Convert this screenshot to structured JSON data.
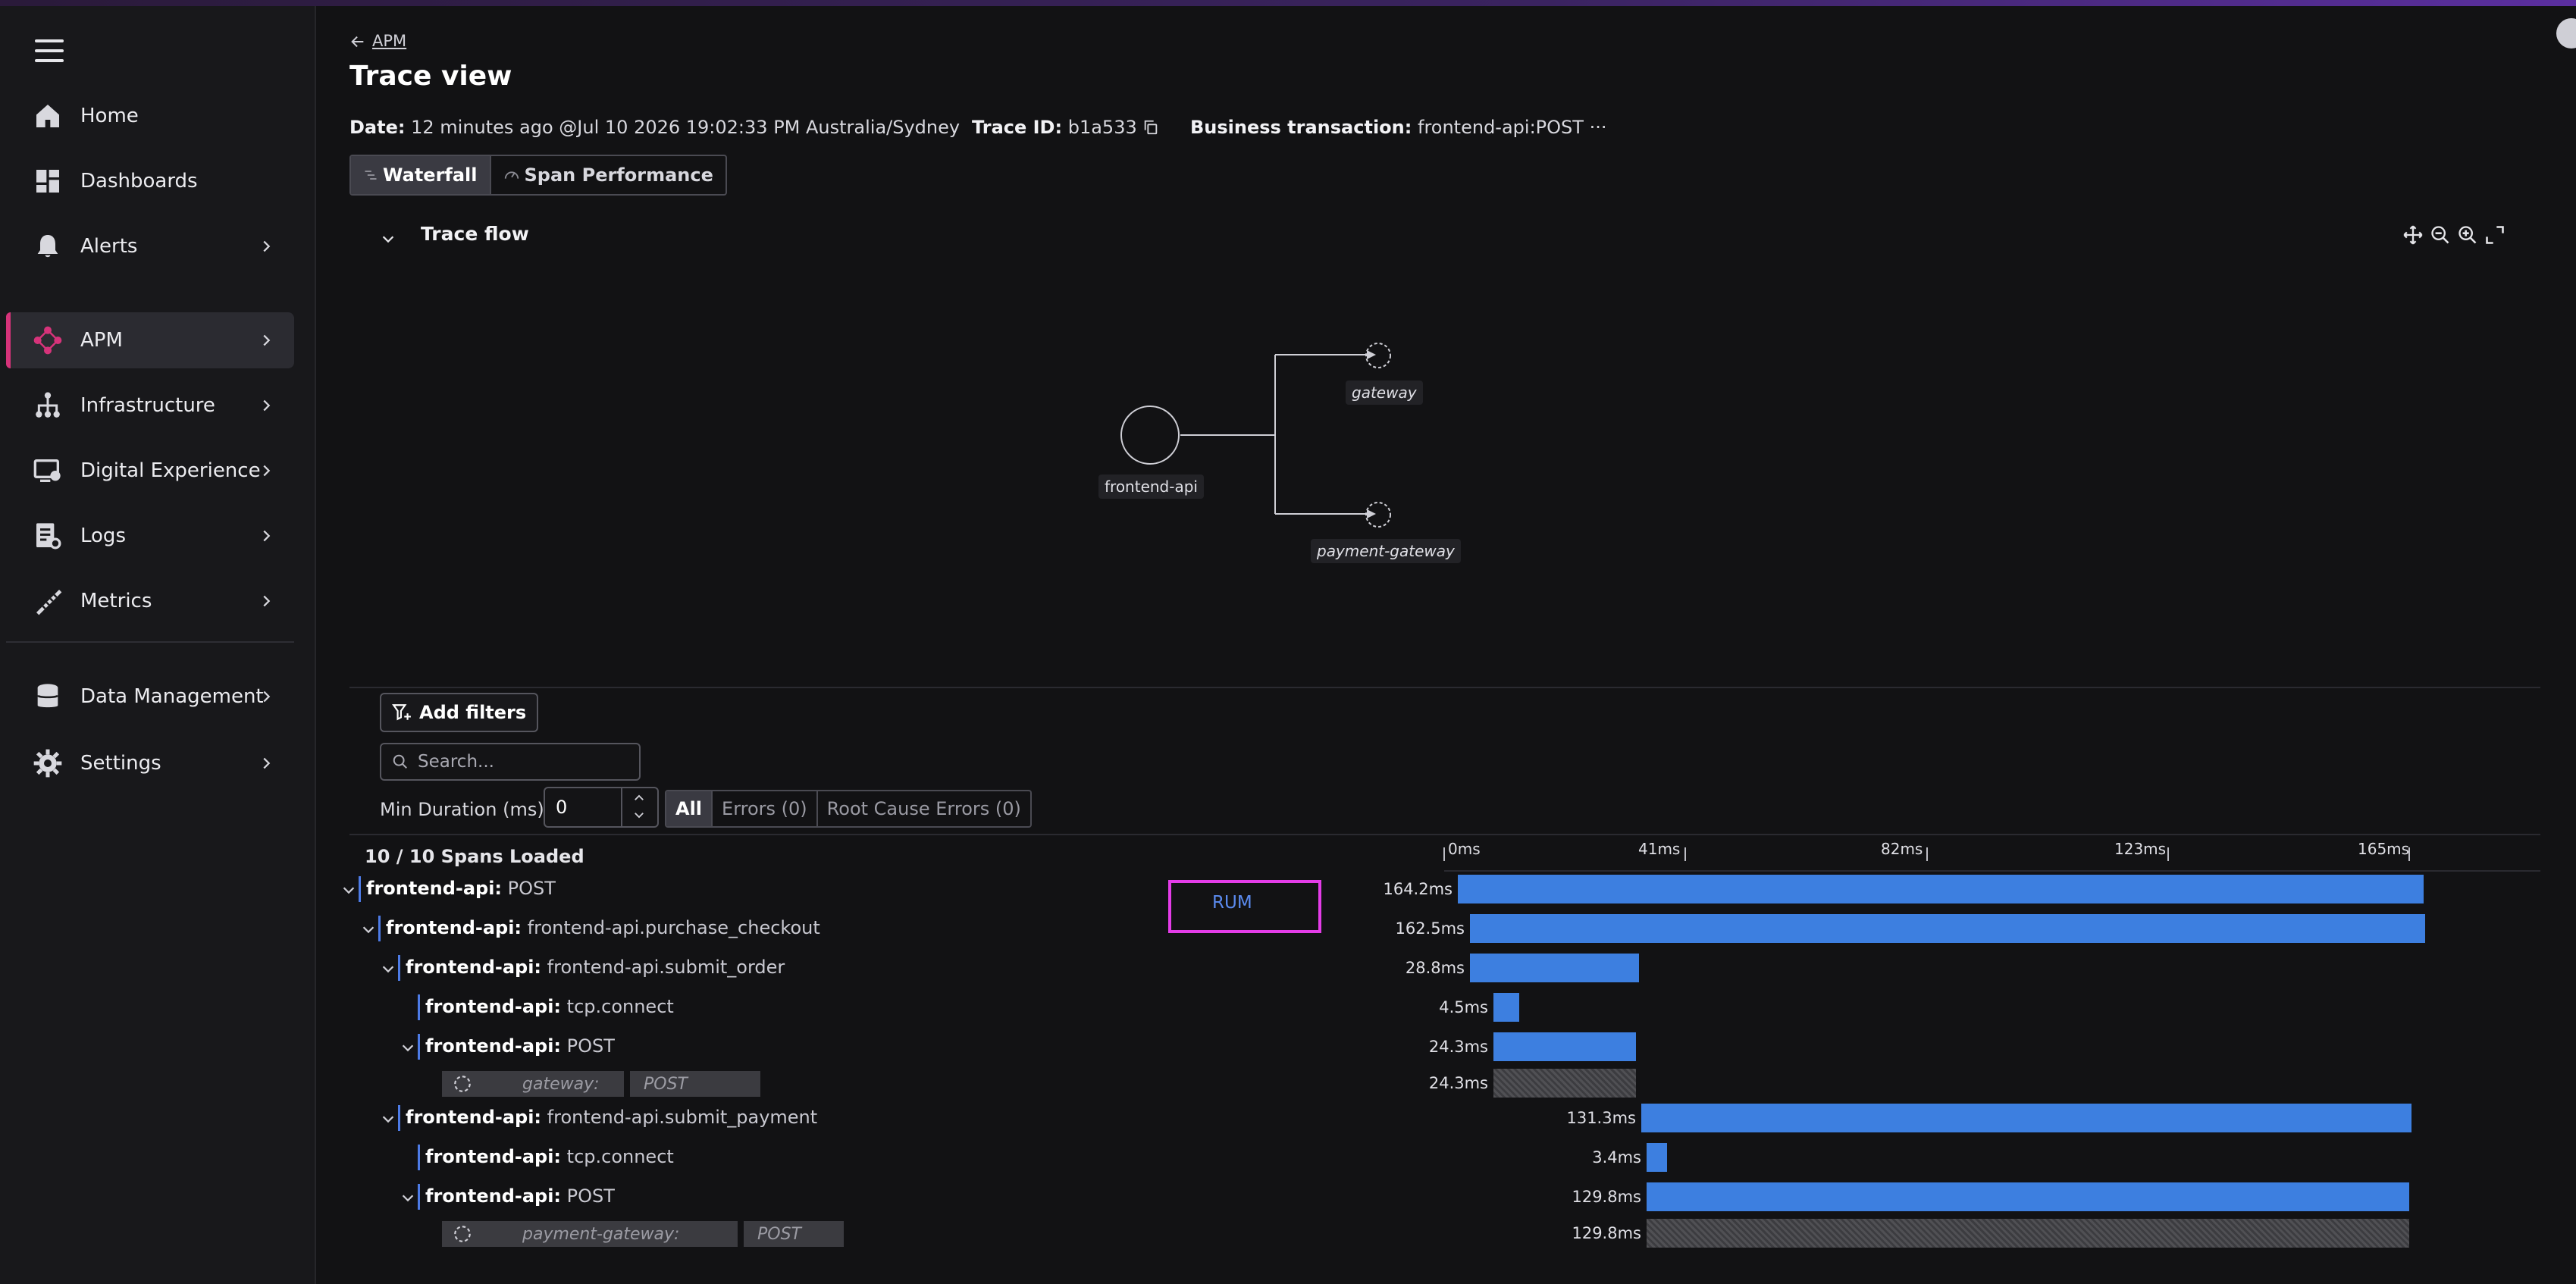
{
  "sidebar": {
    "items": [
      {
        "label": "Home",
        "icon": "home-icon"
      },
      {
        "label": "Dashboards",
        "icon": "dashboards-icon"
      },
      {
        "label": "Alerts",
        "icon": "bell-icon"
      },
      {
        "label": "APM",
        "icon": "apm-icon",
        "active": true
      },
      {
        "label": "Infrastructure",
        "icon": "infrastructure-icon"
      },
      {
        "label": "Digital Experience",
        "icon": "digital-experience-icon"
      },
      {
        "label": "Logs",
        "icon": "logs-icon"
      },
      {
        "label": "Metrics",
        "icon": "metrics-icon"
      },
      {
        "label": "Data Management",
        "icon": "database-icon"
      },
      {
        "label": "Settings",
        "icon": "gear-icon"
      }
    ]
  },
  "header": {
    "breadcrumb": "APM",
    "title": "Trace view",
    "date_label": "Date:",
    "date_value": "12 minutes ago @Jul 10 2026 19:02:33 PM  Australia/Sydney",
    "trace_id_label": "Trace ID:",
    "trace_id_value": "b1a533",
    "business_label": "Business transaction:",
    "business_value": "frontend-api:POST",
    "business_more": "···"
  },
  "tabs": {
    "waterfall": "Waterfall",
    "span_performance": "Span Performance"
  },
  "trace_flow": {
    "title": "Trace flow",
    "nodes": {
      "root": "frontend-api",
      "child1": "gateway",
      "child2": "payment-gateway"
    }
  },
  "filters": {
    "add_filters": "Add filters",
    "search_placeholder": "Search...",
    "min_duration_label": "Min Duration (ms)",
    "min_duration_value": "0",
    "segments": {
      "all": "All",
      "errors": "Errors (0)",
      "root_cause": "Root Cause Errors (0)"
    }
  },
  "waterfall": {
    "spans_loaded": "10 / 10 Spans Loaded",
    "ticks": [
      "0ms",
      "41ms",
      "82ms",
      "123ms",
      "165ms"
    ],
    "rum_label": "RUM",
    "rows": [
      {
        "service": "frontend-api:",
        "op": "POST",
        "duration": "164.2ms"
      },
      {
        "service": "frontend-api:",
        "op": "frontend-api.purchase_checkout",
        "duration": "162.5ms"
      },
      {
        "service": "frontend-api:",
        "op": "frontend-api.submit_order",
        "duration": "28.8ms"
      },
      {
        "service": "frontend-api:",
        "op": "tcp.connect",
        "duration": "4.5ms"
      },
      {
        "service": "frontend-api:",
        "op": "POST",
        "duration": "24.3ms"
      },
      {
        "service": "gateway:",
        "op": "POST",
        "duration": "24.3ms",
        "inferred": true
      },
      {
        "service": "frontend-api:",
        "op": "frontend-api.submit_payment",
        "duration": "131.3ms"
      },
      {
        "service": "frontend-api:",
        "op": "tcp.connect",
        "duration": "3.4ms"
      },
      {
        "service": "frontend-api:",
        "op": "POST",
        "duration": "129.8ms"
      },
      {
        "service": "payment-gateway:",
        "op": "POST",
        "duration": "129.8ms",
        "inferred": true
      }
    ]
  },
  "colors": {
    "accent": "#d6337a",
    "bar": "#3d7fe0",
    "highlight": "#e43ce8"
  }
}
